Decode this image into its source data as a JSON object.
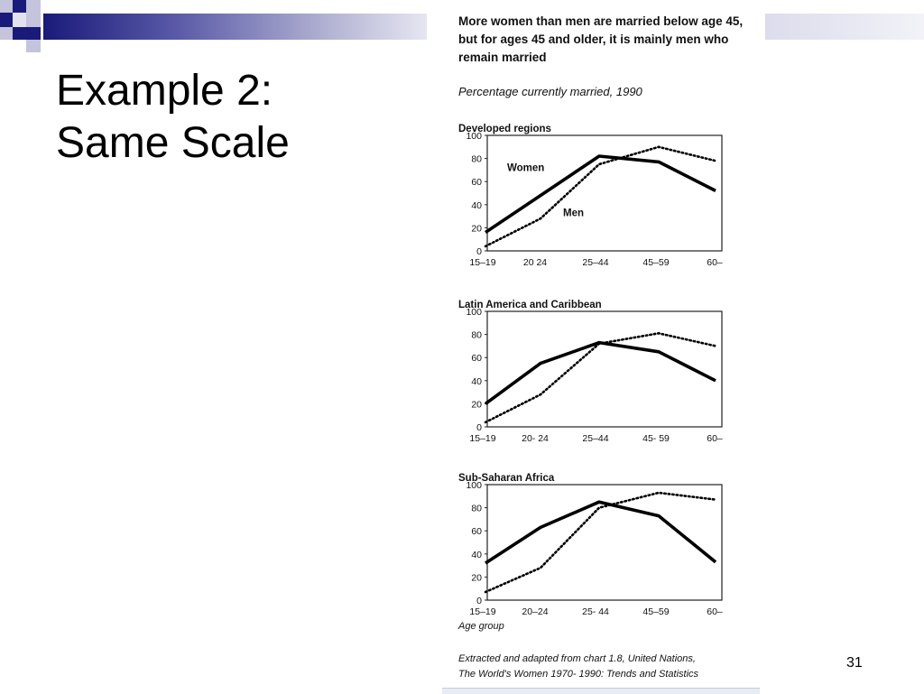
{
  "slide": {
    "title_line1": "Example 2:",
    "title_line2": "Same Scale",
    "page_number": "31"
  },
  "figure": {
    "title": "More women than men are married below age 45, but for ages 45 and older, it is mainly men who remain married",
    "subtitle": "Percentage currently married, 1990",
    "source_line1": "Extracted and adapted from chart 1.8, United Nations,",
    "source_line2": "The World's Women 1970- 1990: Trends and Statistics"
  },
  "colors": {
    "deco_dark": "#1a1a7a",
    "deco_light": "#b4b4d4",
    "line": "#000000"
  },
  "chart_data": [
    {
      "type": "line",
      "title": "Developed regions",
      "categories": [
        "15-19",
        "20-24",
        "25-44",
        "45-59",
        "60+"
      ],
      "tick_labels": [
        "15–19",
        "20  24",
        "25–44",
        "45–59",
        "60–"
      ],
      "ylim": [
        0,
        100
      ],
      "yticks": [
        0,
        20,
        40,
        60,
        80,
        100
      ],
      "series": [
        {
          "name": "Women",
          "style": "solid",
          "values": [
            16,
            48,
            82,
            77,
            52
          ]
        },
        {
          "name": "Men",
          "style": "dotted",
          "values": [
            4,
            28,
            75,
            90,
            78
          ]
        }
      ],
      "annotations": [
        "Women",
        "Men"
      ]
    },
    {
      "type": "line",
      "title": "Latin America and Caribbean",
      "categories": [
        "15-19",
        "20-24",
        "25-44",
        "45-59",
        "60+"
      ],
      "tick_labels": [
        "15–19",
        "20- 24",
        "25–44",
        "45- 59",
        "60–"
      ],
      "ylim": [
        0,
        100
      ],
      "yticks": [
        0,
        20,
        40,
        60,
        80,
        100
      ],
      "series": [
        {
          "name": "Women",
          "style": "solid",
          "values": [
            20,
            55,
            73,
            65,
            40
          ]
        },
        {
          "name": "Men",
          "style": "dotted",
          "values": [
            4,
            28,
            72,
            81,
            70
          ]
        }
      ]
    },
    {
      "type": "line",
      "title": "Sub-Saharan  Africa",
      "categories": [
        "15-19",
        "20-24",
        "25-44",
        "45-59",
        "60+"
      ],
      "tick_labels": [
        "15–19",
        "20–24",
        "25- 44",
        "45–59",
        "60–"
      ],
      "xlabel": "Age group",
      "ylim": [
        0,
        100
      ],
      "yticks": [
        0,
        20,
        40,
        60,
        80,
        100
      ],
      "series": [
        {
          "name": "Women",
          "style": "solid",
          "values": [
            32,
            63,
            85,
            73,
            33
          ]
        },
        {
          "name": "Men",
          "style": "dotted",
          "values": [
            7,
            28,
            80,
            93,
            87
          ]
        }
      ]
    }
  ]
}
